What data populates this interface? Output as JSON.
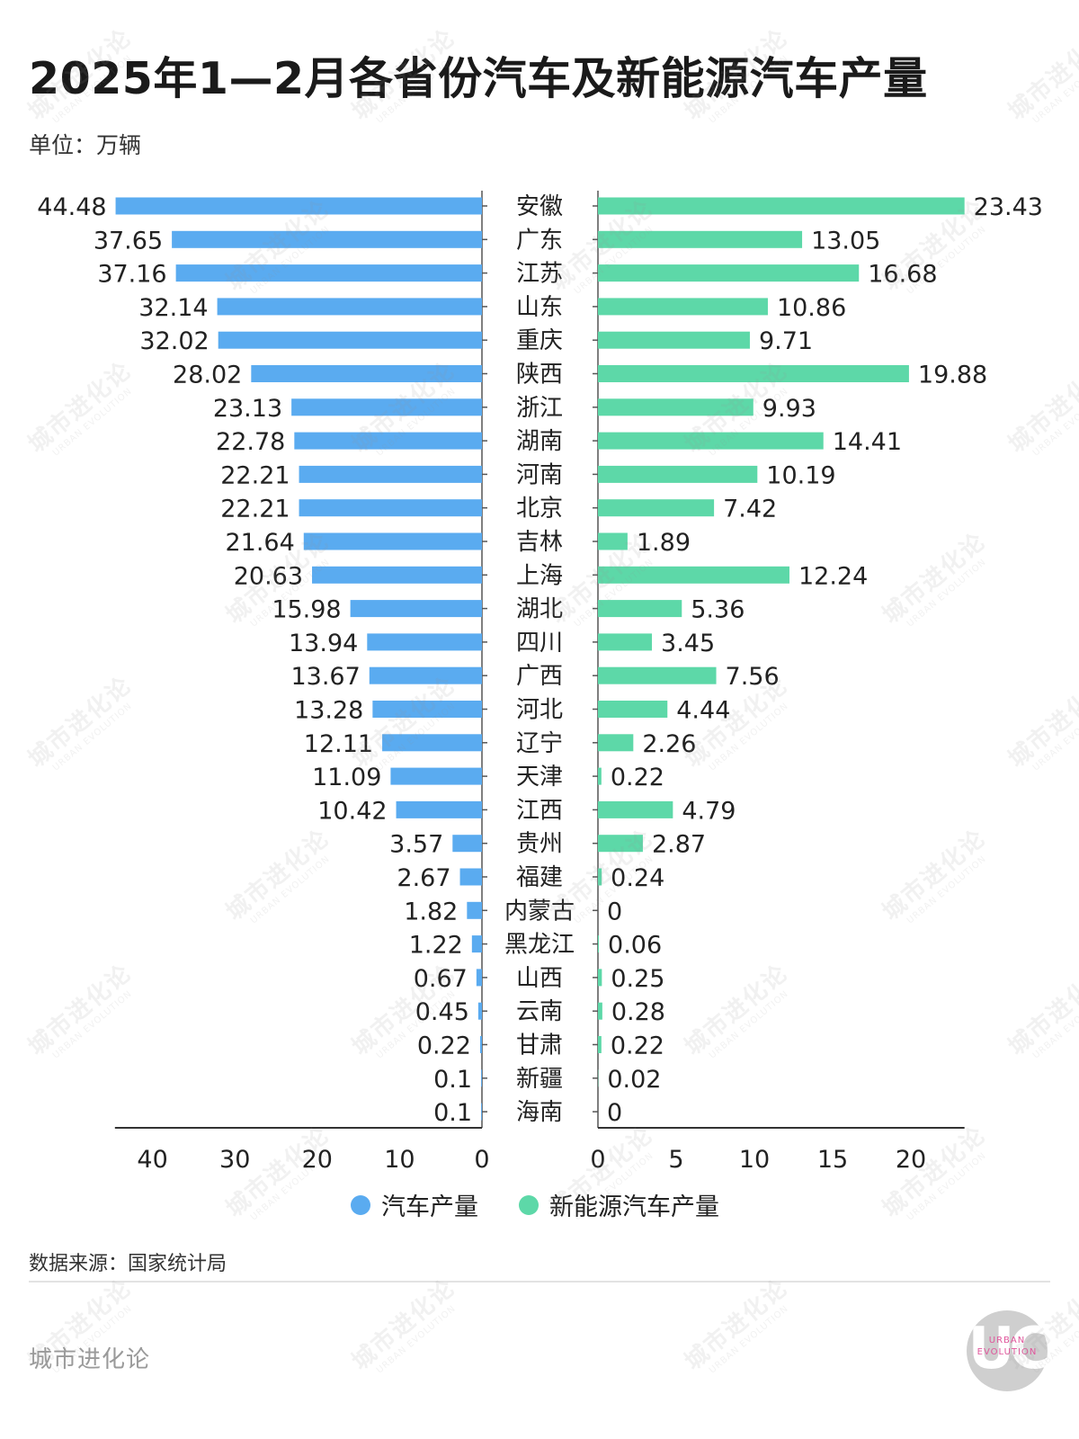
{
  "header": {
    "title": "2025年1—2月各省份汽车及新能源汽车产量",
    "unit": "单位：万辆"
  },
  "chart_data": {
    "type": "bar",
    "orientation": "horizontal-butterfly",
    "categories": [
      "安徽",
      "广东",
      "江苏",
      "山东",
      "重庆",
      "陕西",
      "浙江",
      "湖南",
      "河南",
      "北京",
      "吉林",
      "上海",
      "湖北",
      "四川",
      "广西",
      "河北",
      "辽宁",
      "天津",
      "江西",
      "贵州",
      "福建",
      "内蒙古",
      "黑龙江",
      "山西",
      "云南",
      "甘肃",
      "新疆",
      "海南"
    ],
    "series": [
      {
        "name": "汽车产量",
        "color": "#5aabf0",
        "values": [
          44.48,
          37.65,
          37.16,
          32.14,
          32.02,
          28.02,
          23.13,
          22.78,
          22.21,
          22.21,
          21.64,
          20.63,
          15.98,
          13.94,
          13.67,
          13.28,
          12.11,
          11.09,
          10.42,
          3.57,
          2.67,
          1.82,
          1.22,
          0.67,
          0.45,
          0.22,
          0.1,
          0.1
        ],
        "labels": [
          "44.48",
          "37.65",
          "37.16",
          "32.14",
          "32.02",
          "28.02",
          "23.13",
          "22.78",
          "22.21",
          "22.21",
          "21.64",
          "20.63",
          "15.98",
          "13.94",
          "13.67",
          "13.28",
          "12.11",
          "11.09",
          "10.42",
          "3.57",
          "2.67",
          "1.82",
          "1.22",
          "0.67",
          "0.45",
          "0.22",
          "0.1",
          "0.1"
        ],
        "axis_ticks": [
          "40",
          "30",
          "20",
          "10",
          "0"
        ]
      },
      {
        "name": "新能源汽车产量",
        "color": "#5dd8a8",
        "values": [
          23.43,
          13.05,
          16.68,
          10.86,
          9.71,
          19.88,
          9.93,
          14.41,
          10.19,
          7.42,
          1.89,
          12.24,
          5.36,
          3.45,
          7.56,
          4.44,
          2.26,
          0.22,
          4.79,
          2.87,
          0.24,
          0,
          0.06,
          0.25,
          0.28,
          0.22,
          0.02,
          0
        ],
        "labels": [
          "23.43",
          "13.05",
          "16.68",
          "10.86",
          "9.71",
          "19.88",
          "9.93",
          "14.41",
          "10.19",
          "7.42",
          "1.89",
          "12.24",
          "5.36",
          "3.45",
          "7.56",
          "4.44",
          "2.26",
          "0.22",
          "4.79",
          "2.87",
          "0.24",
          "0",
          "0.06",
          "0.25",
          "0.28",
          "0.22",
          "0.02",
          "0"
        ],
        "axis_ticks": [
          "0",
          "5",
          "10",
          "15",
          "20"
        ]
      }
    ],
    "xlim_left": [
      0,
      45
    ],
    "xlim_right": [
      0,
      23.43
    ],
    "grid": false,
    "legend_position": "bottom-center"
  },
  "legend": {
    "items": [
      {
        "label": "汽车产量",
        "color": "#5aabf0"
      },
      {
        "label": "新能源汽车产量",
        "color": "#5dd8a8"
      }
    ]
  },
  "footer": {
    "source": "数据来源：国家统计局",
    "brand": "城市进化论",
    "logo_mark": "UC",
    "logo_text_1": "URBAN",
    "logo_text_2": "EVOLUTION"
  },
  "watermark": {
    "text_cn": "城市进化论",
    "text_en": "URBAN EVOLUTION"
  }
}
